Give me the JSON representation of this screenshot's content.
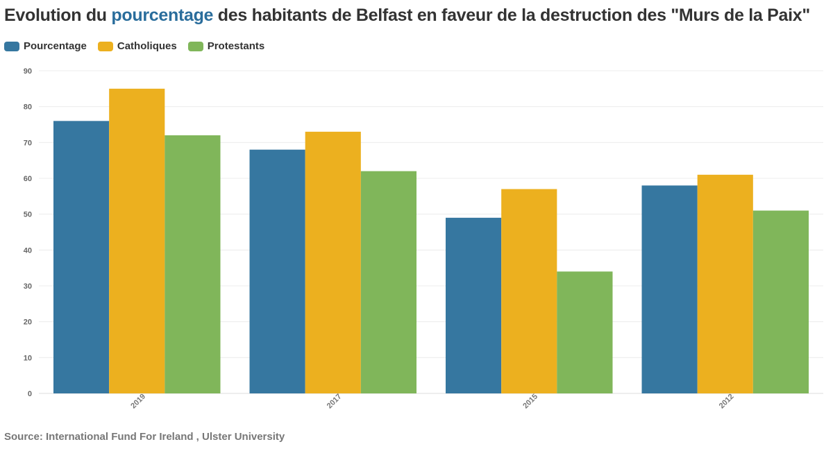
{
  "title": {
    "part1": "Evolution du ",
    "highlight": "pourcentage",
    "part2": " des habitants de Belfast en faveur de la destruction des \"Murs de la Paix\"",
    "highlight_color": "#2a6d9c"
  },
  "source": "Source: International Fund For Ireland , Ulster University",
  "chart_data": {
    "type": "bar",
    "categories": [
      "2019",
      "2017",
      "2015",
      "2012"
    ],
    "series": [
      {
        "name": "Pourcentage",
        "color": "#3677a0",
        "values": [
          76,
          68,
          49,
          58
        ]
      },
      {
        "name": "Catholiques",
        "color": "#ecb01f",
        "values": [
          85,
          73,
          57,
          61
        ]
      },
      {
        "name": "Protestants",
        "color": "#80b65a",
        "values": [
          72,
          62,
          34,
          51
        ]
      }
    ],
    "ylim": [
      0,
      90
    ],
    "yticks": [
      0,
      10,
      20,
      30,
      40,
      50,
      60,
      70,
      80,
      90
    ],
    "grid": true,
    "legend_position": "top-left"
  }
}
